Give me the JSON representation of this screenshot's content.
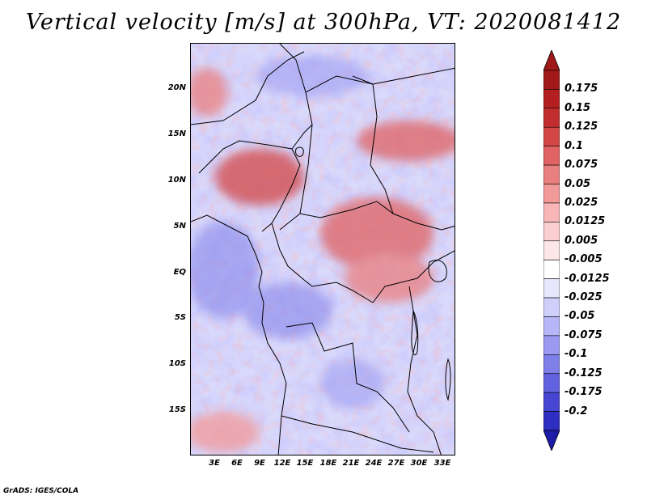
{
  "title": "Vertical velocity [m/s] at 300hPa, VT: 2020081412",
  "credit": "GrADS: IGES/COLA",
  "map": {
    "lon_range": [
      0,
      35
    ],
    "lat_range": [
      -20,
      24
    ],
    "lat_ticks": [
      {
        "value": 20,
        "label": "20N"
      },
      {
        "value": 15,
        "label": "15N"
      },
      {
        "value": 10,
        "label": "10N"
      },
      {
        "value": 5,
        "label": "5N"
      },
      {
        "value": 0,
        "label": "EQ"
      },
      {
        "value": -5,
        "label": "5S"
      },
      {
        "value": -10,
        "label": "10S"
      },
      {
        "value": -15,
        "label": "15S"
      }
    ],
    "lon_ticks": [
      {
        "value": 3,
        "label": "3E"
      },
      {
        "value": 6,
        "label": "6E"
      },
      {
        "value": 9,
        "label": "9E"
      },
      {
        "value": 12,
        "label": "12E"
      },
      {
        "value": 15,
        "label": "15E"
      },
      {
        "value": 18,
        "label": "18E"
      },
      {
        "value": 21,
        "label": "21E"
      },
      {
        "value": 24,
        "label": "24E"
      },
      {
        "value": 27,
        "label": "27E"
      },
      {
        "value": 30,
        "label": "30E"
      },
      {
        "value": 33,
        "label": "33E"
      }
    ]
  },
  "colorbar": {
    "levels": [
      {
        "label": "0.175",
        "color": "#b31e1e"
      },
      {
        "label": "0.15",
        "color": "#c22e2e"
      },
      {
        "label": "0.125",
        "color": "#d24646"
      },
      {
        "label": "0.1",
        "color": "#e06262"
      },
      {
        "label": "0.075",
        "color": "#ea7f7f"
      },
      {
        "label": "0.05",
        "color": "#f29a9a"
      },
      {
        "label": "0.025",
        "color": "#f8b6b6"
      },
      {
        "label": "0.0125",
        "color": "#fbcfcf"
      },
      {
        "label": "0.005",
        "color": "#fde6e6"
      },
      {
        "label": "-0.005",
        "color": "#ffffff"
      },
      {
        "label": "-0.0125",
        "color": "#e6e6fd"
      },
      {
        "label": "-0.025",
        "color": "#cfcffb"
      },
      {
        "label": "-0.05",
        "color": "#b6b6f8"
      },
      {
        "label": "-0.075",
        "color": "#9a9af2"
      },
      {
        "label": "-0.1",
        "color": "#7f7fea"
      },
      {
        "label": "-0.125",
        "color": "#6262e0"
      },
      {
        "label": "-0.175",
        "color": "#4646d2"
      },
      {
        "label": "-0.2",
        "color": "#2e2ec2"
      }
    ],
    "top_color": "#a01818",
    "bottom_color": "#1c1ca8"
  }
}
